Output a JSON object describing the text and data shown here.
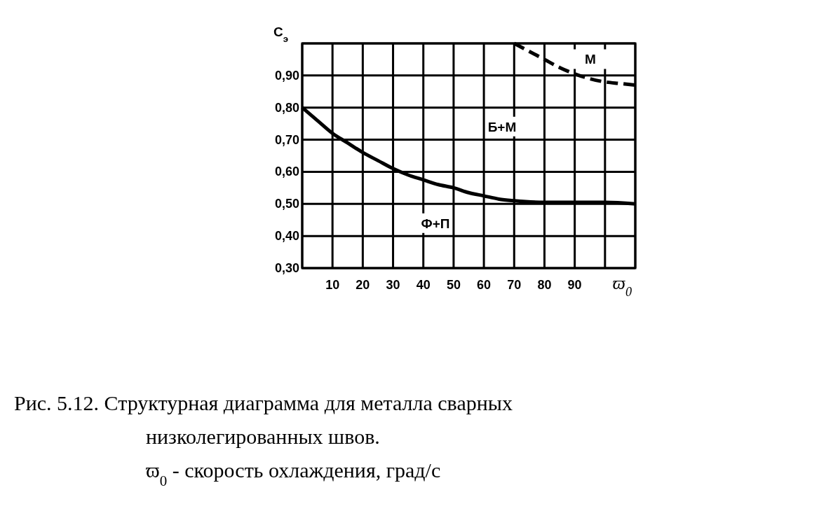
{
  "chart_data": {
    "type": "line",
    "ylabel": "C$_{э}$",
    "xlabel": "ϖ$_{0}$",
    "xlim": [
      0,
      110
    ],
    "ylim": [
      0.3,
      1.0
    ],
    "xticks": [
      {
        "value": 0,
        "label": null
      },
      10,
      20,
      30,
      40,
      50,
      60,
      70,
      80,
      90,
      {
        "value": 100,
        "label": null
      },
      {
        "value": 110,
        "label": null
      }
    ],
    "yticks": [
      {
        "value": 0.3,
        "label": "0,30"
      },
      {
        "value": 0.4,
        "label": "0,40"
      },
      {
        "value": 0.5,
        "label": "0,50"
      },
      {
        "value": 0.6,
        "label": "0,60"
      },
      {
        "value": 0.7,
        "label": "0,70"
      },
      {
        "value": 0.8,
        "label": "0,80"
      },
      {
        "value": 0.9,
        "label": "0,90"
      },
      {
        "value": 1.0,
        "label": null
      }
    ],
    "grid": true,
    "series": [
      {
        "color": "#000000",
        "line_style": "solid",
        "x": [
          0,
          5,
          10,
          15,
          20,
          25,
          30,
          35,
          40,
          45,
          50,
          55,
          60,
          65,
          70,
          80,
          90,
          100,
          110
        ],
        "values": [
          0.8,
          0.76,
          0.72,
          0.69,
          0.66,
          0.635,
          0.61,
          0.59,
          0.575,
          0.56,
          0.55,
          0.535,
          0.525,
          0.515,
          0.51,
          0.505,
          0.505,
          0.505,
          0.5
        ]
      },
      {
        "color": "#000000",
        "line_style": "dashed",
        "x": [
          70,
          75,
          80,
          85,
          90,
          95,
          100,
          105,
          110
        ],
        "values": [
          1.0,
          0.975,
          0.95,
          0.925,
          0.905,
          0.89,
          0.88,
          0.875,
          0.87
        ]
      }
    ],
    "annotations": [
      "Б+М",
      "Ф+П",
      "М",
      "Рис. 5.12. Структурная диаграмма для металла сварных низколегированных швов.",
      "ϖ$_{0}$ - скорость охлаждения, град/с"
    ]
  }
}
